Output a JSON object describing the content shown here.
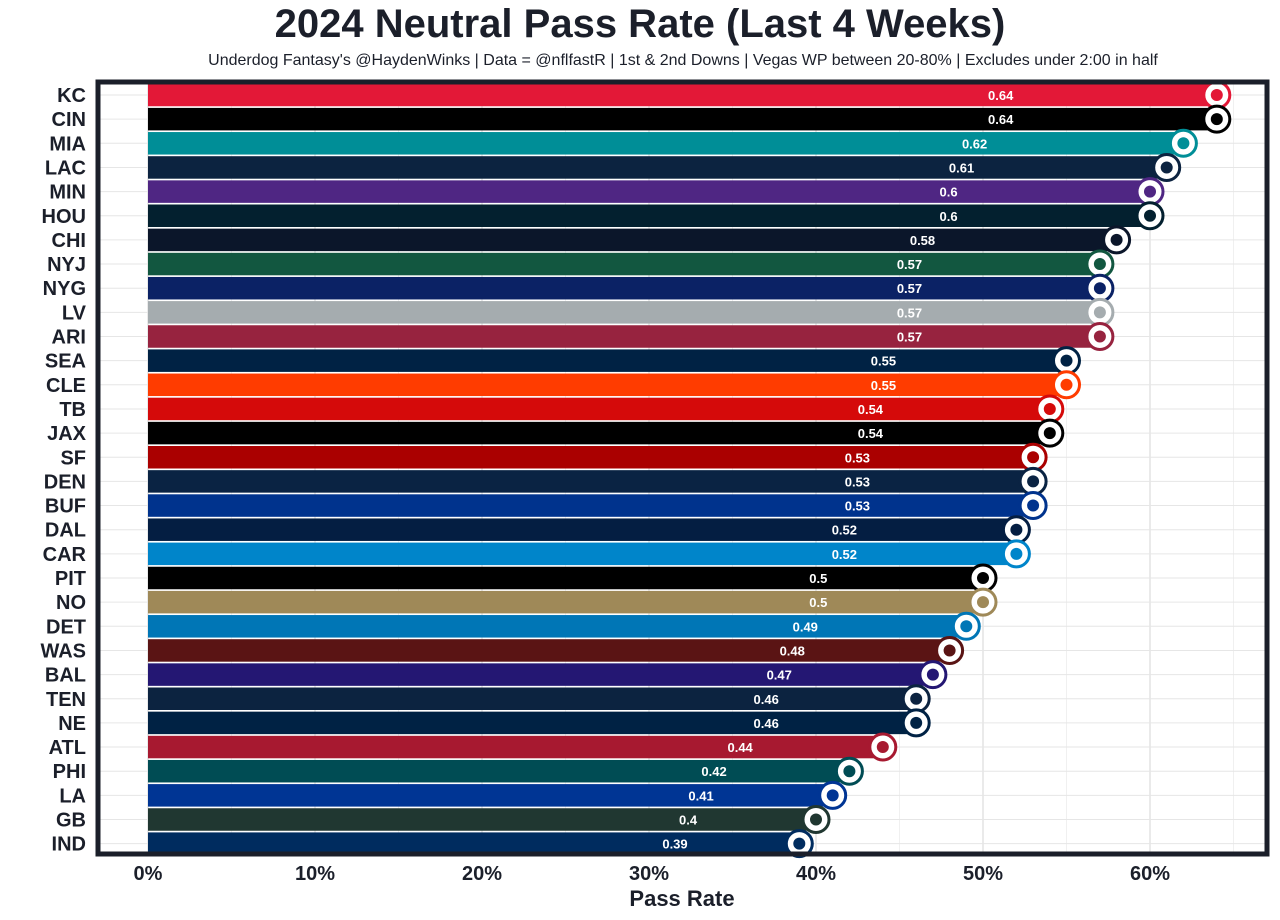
{
  "chart_data": {
    "type": "bar",
    "orientation": "horizontal",
    "title": "2024 Neutral Pass Rate (Last 4 Weeks)",
    "subtitle": "Underdog Fantasy's @HaydenWinks | Data = @nflfastR | 1st & 2nd Downs | Vegas WP between 20-80% | Excludes under 2:00 in half",
    "xlabel": "Pass Rate",
    "ylabel": "",
    "xlim": [
      0,
      0.66
    ],
    "xticks": [
      0,
      0.1,
      0.2,
      0.3,
      0.4,
      0.5,
      0.6
    ],
    "xtick_labels": [
      "0%",
      "10%",
      "20%",
      "30%",
      "40%",
      "50%",
      "60%"
    ],
    "grid": true,
    "legend": "none",
    "categories": [
      "KC",
      "CIN",
      "MIA",
      "LAC",
      "MIN",
      "HOU",
      "CHI",
      "NYJ",
      "NYG",
      "LV",
      "ARI",
      "SEA",
      "CLE",
      "TB",
      "JAX",
      "SF",
      "DEN",
      "BUF",
      "DAL",
      "CAR",
      "PIT",
      "NO",
      "DET",
      "WAS",
      "BAL",
      "TEN",
      "NE",
      "ATL",
      "PHI",
      "LA",
      "GB",
      "IND"
    ],
    "values": [
      0.64,
      0.64,
      0.62,
      0.61,
      0.6,
      0.6,
      0.58,
      0.57,
      0.57,
      0.57,
      0.57,
      0.55,
      0.55,
      0.54,
      0.54,
      0.53,
      0.53,
      0.53,
      0.52,
      0.52,
      0.5,
      0.5,
      0.49,
      0.48,
      0.47,
      0.46,
      0.46,
      0.44,
      0.42,
      0.41,
      0.4,
      0.39
    ],
    "value_labels": [
      "0.64",
      "0.64",
      "0.62",
      "0.61",
      "0.6",
      "0.6",
      "0.58",
      "0.57",
      "0.57",
      "0.57",
      "0.57",
      "0.55",
      "0.55",
      "0.54",
      "0.54",
      "0.53",
      "0.53",
      "0.53",
      "0.52",
      "0.52",
      "0.5",
      "0.5",
      "0.49",
      "0.48",
      "0.47",
      "0.46",
      "0.46",
      "0.44",
      "0.42",
      "0.41",
      "0.4",
      "0.39"
    ],
    "colors": [
      "#E31837",
      "#000000",
      "#008E97",
      "#0C2340",
      "#4F2683",
      "#03202F",
      "#0B162A",
      "#125740",
      "#0B2265",
      "#A5ACAF",
      "#97233F",
      "#002244",
      "#FF3C00",
      "#D50A0A",
      "#000000",
      "#AA0000",
      "#0A2343",
      "#00338D",
      "#041E42",
      "#0085CA",
      "#000000",
      "#9F8958",
      "#0076B6",
      "#5A1414",
      "#241773",
      "#0C2340",
      "#002244",
      "#A71930",
      "#004C54",
      "#003594",
      "#203731",
      "#002C5F"
    ],
    "logo_icons": [
      "chiefs-logo-icon",
      "bengals-logo-icon",
      "dolphins-logo-icon",
      "chargers-logo-icon",
      "vikings-logo-icon",
      "texans-logo-icon",
      "bears-logo-icon",
      "jets-logo-icon",
      "giants-logo-icon",
      "raiders-logo-icon",
      "cardinals-logo-icon",
      "seahawks-logo-icon",
      "browns-logo-icon",
      "buccaneers-logo-icon",
      "jaguars-logo-icon",
      "49ers-logo-icon",
      "broncos-logo-icon",
      "bills-logo-icon",
      "cowboys-logo-icon",
      "panthers-logo-icon",
      "steelers-logo-icon",
      "saints-logo-icon",
      "lions-logo-icon",
      "commanders-logo-icon",
      "ravens-logo-icon",
      "titans-logo-icon",
      "patriots-logo-icon",
      "falcons-logo-icon",
      "eagles-logo-icon",
      "rams-logo-icon",
      "packers-logo-icon",
      "colts-logo-icon"
    ]
  }
}
